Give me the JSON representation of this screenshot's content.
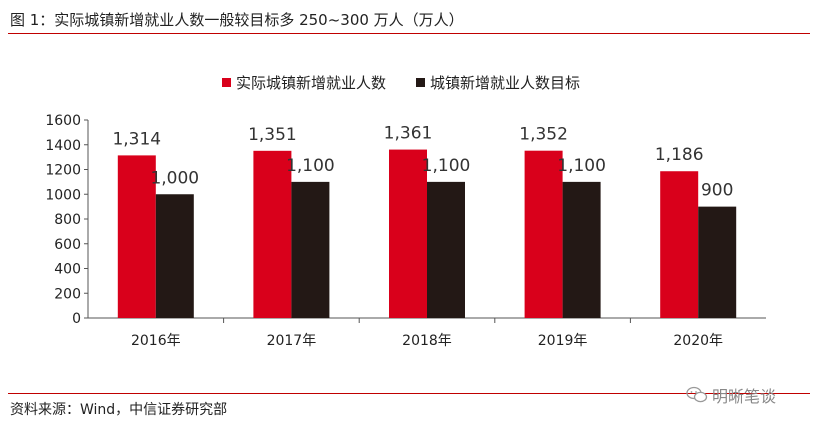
{
  "header": {
    "title": "图 1：实际城镇新增就业人数一般较目标多 250~300 万人（万人）"
  },
  "footer": {
    "source": "资料来源：Wind，中信证券研究部",
    "watermark": "明晰笔谈"
  },
  "chart_data": {
    "type": "bar",
    "title": "图 1：实际城镇新增就业人数一般较目标多 250~300 万人（万人）",
    "unit": "万人",
    "categories": [
      "2016年",
      "2017年",
      "2018年",
      "2019年",
      "2020年"
    ],
    "series": [
      {
        "name": "实际城镇新增就业人数",
        "color": "#d9001b",
        "values": [
          1314,
          1351,
          1361,
          1352,
          1186
        ],
        "labels": [
          "1,314",
          "1,351",
          "1,361",
          "1,352",
          "1,186"
        ]
      },
      {
        "name": "城镇新增就业人数目标",
        "color": "#231815",
        "values": [
          1000,
          1100,
          1100,
          1100,
          900
        ],
        "labels": [
          "1,000",
          "1,100",
          "1,100",
          "1,100",
          "900"
        ]
      }
    ],
    "ylim": [
      0,
      1600
    ],
    "yticks": [
      0,
      200,
      400,
      600,
      800,
      1000,
      1200,
      1400,
      1600
    ],
    "legend": "top-center",
    "grid": false,
    "xlabel": "",
    "ylabel": ""
  }
}
